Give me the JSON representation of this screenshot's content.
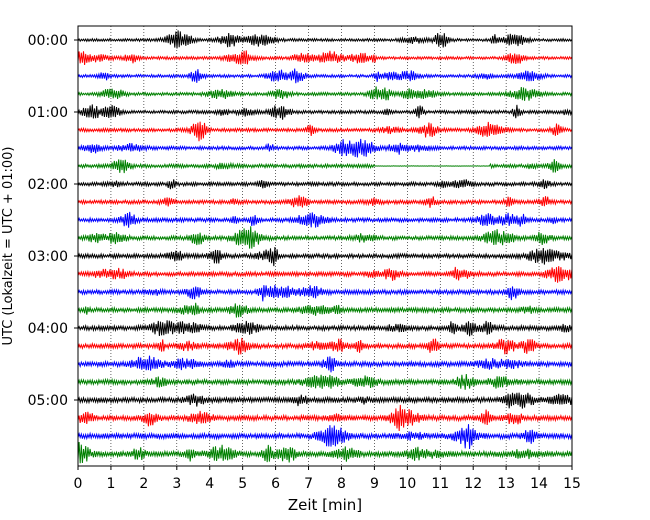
{
  "chart_data": {
    "type": "line",
    "title": "",
    "xlabel": "Zeit  [min]",
    "ylabel": "UTC (Lokalzeit = UTC + 01:00)",
    "xlim": [
      0,
      15
    ],
    "x_ticks": [
      "0",
      "1",
      "2",
      "3",
      "4",
      "5",
      "6",
      "7",
      "8",
      "9",
      "10",
      "11",
      "12",
      "13",
      "14",
      "15"
    ],
    "y_tick_labels": [
      "00:00",
      "01:00",
      "02:00",
      "03:00",
      "04:00",
      "05:00"
    ],
    "grid": "vertical-dotted",
    "trace_interval_min": 15,
    "num_traces": 24,
    "color_cycle": [
      "#000000",
      "#ff0000",
      "#0000ff",
      "#008000"
    ],
    "quiet_gaps": [
      {
        "trace": 7,
        "from_min": 9.0,
        "to_min": 12.5
      }
    ]
  }
}
